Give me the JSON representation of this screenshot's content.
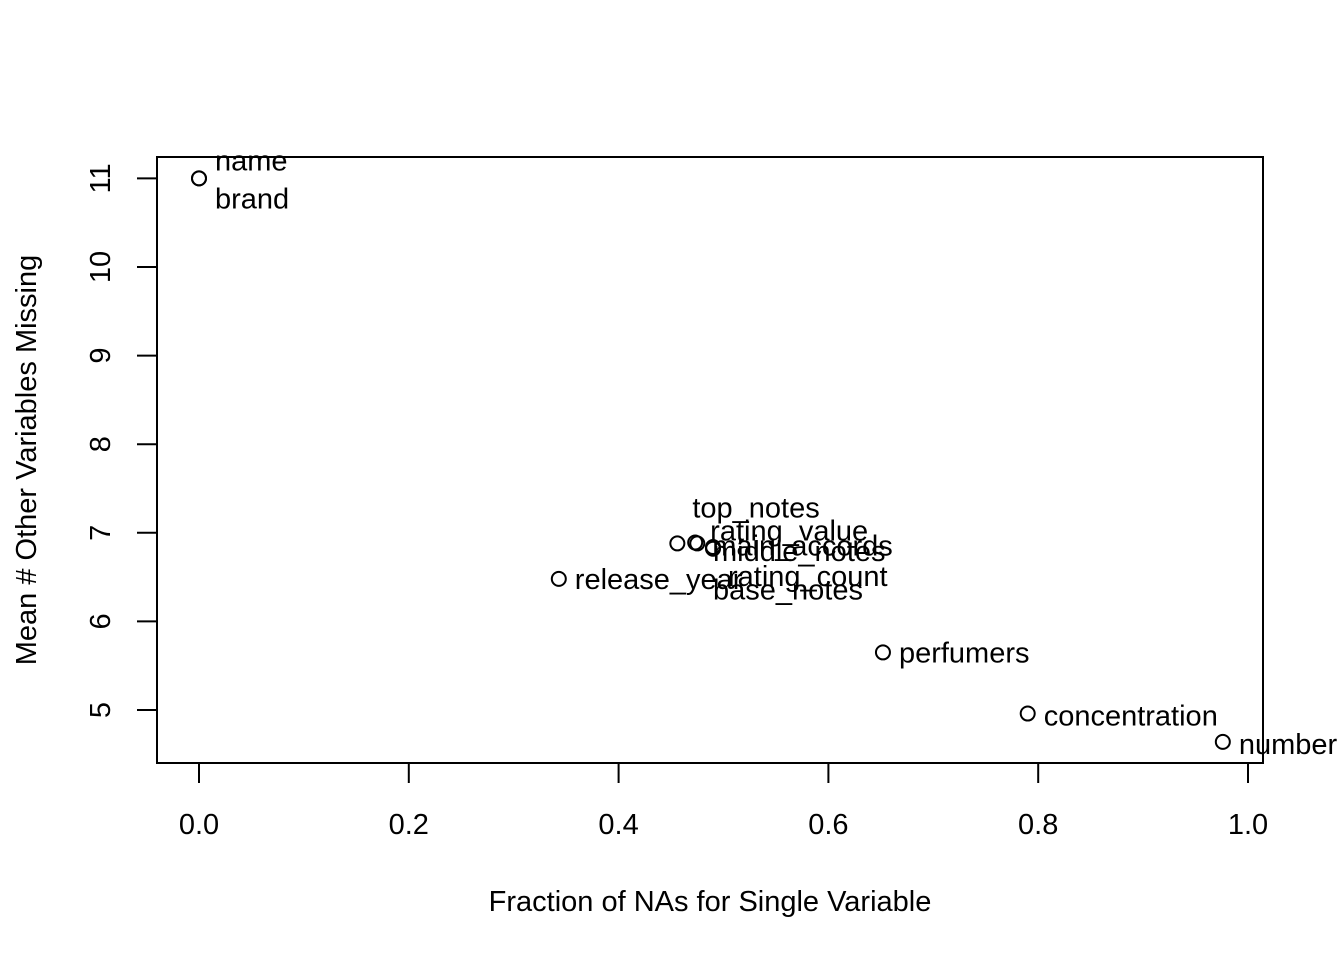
{
  "chart_data": {
    "type": "scatter",
    "title": "",
    "xlabel": "Fraction of NAs for Single Variable",
    "ylabel": "Mean # Other Variables Missing",
    "xlim": [
      -0.1,
      1.01
    ],
    "ylim": [
      4.4,
      11.25
    ],
    "x_ticks": [
      "0.0",
      "0.2",
      "0.4",
      "0.6",
      "0.8",
      "1.0"
    ],
    "y_ticks": [
      "5",
      "6",
      "7",
      "8",
      "9",
      "10",
      "11"
    ],
    "grid": false,
    "points": [
      {
        "label": "name",
        "x": 0.0,
        "y": 11.0
      },
      {
        "label": "brand",
        "x": 0.0,
        "y": 11.0
      },
      {
        "label": "release_year",
        "x": 0.343,
        "y": 6.48
      },
      {
        "label": "top_notes",
        "x": 0.456,
        "y": 6.88
      },
      {
        "label": "rating_value",
        "x": 0.473,
        "y": 6.89
      },
      {
        "label": "main_accords",
        "x": 0.475,
        "y": 6.88
      },
      {
        "label": "middle_notes",
        "x": 0.49,
        "y": 6.84
      },
      {
        "label": "rating_count",
        "x": 0.49,
        "y": 6.83
      },
      {
        "label": "base_notes",
        "x": 0.49,
        "y": 6.82
      },
      {
        "label": "perfumers",
        "x": 0.652,
        "y": 5.65
      },
      {
        "label": "concentration",
        "x": 0.79,
        "y": 4.96
      },
      {
        "label": "number",
        "x": 0.976,
        "y": 4.64
      }
    ]
  }
}
